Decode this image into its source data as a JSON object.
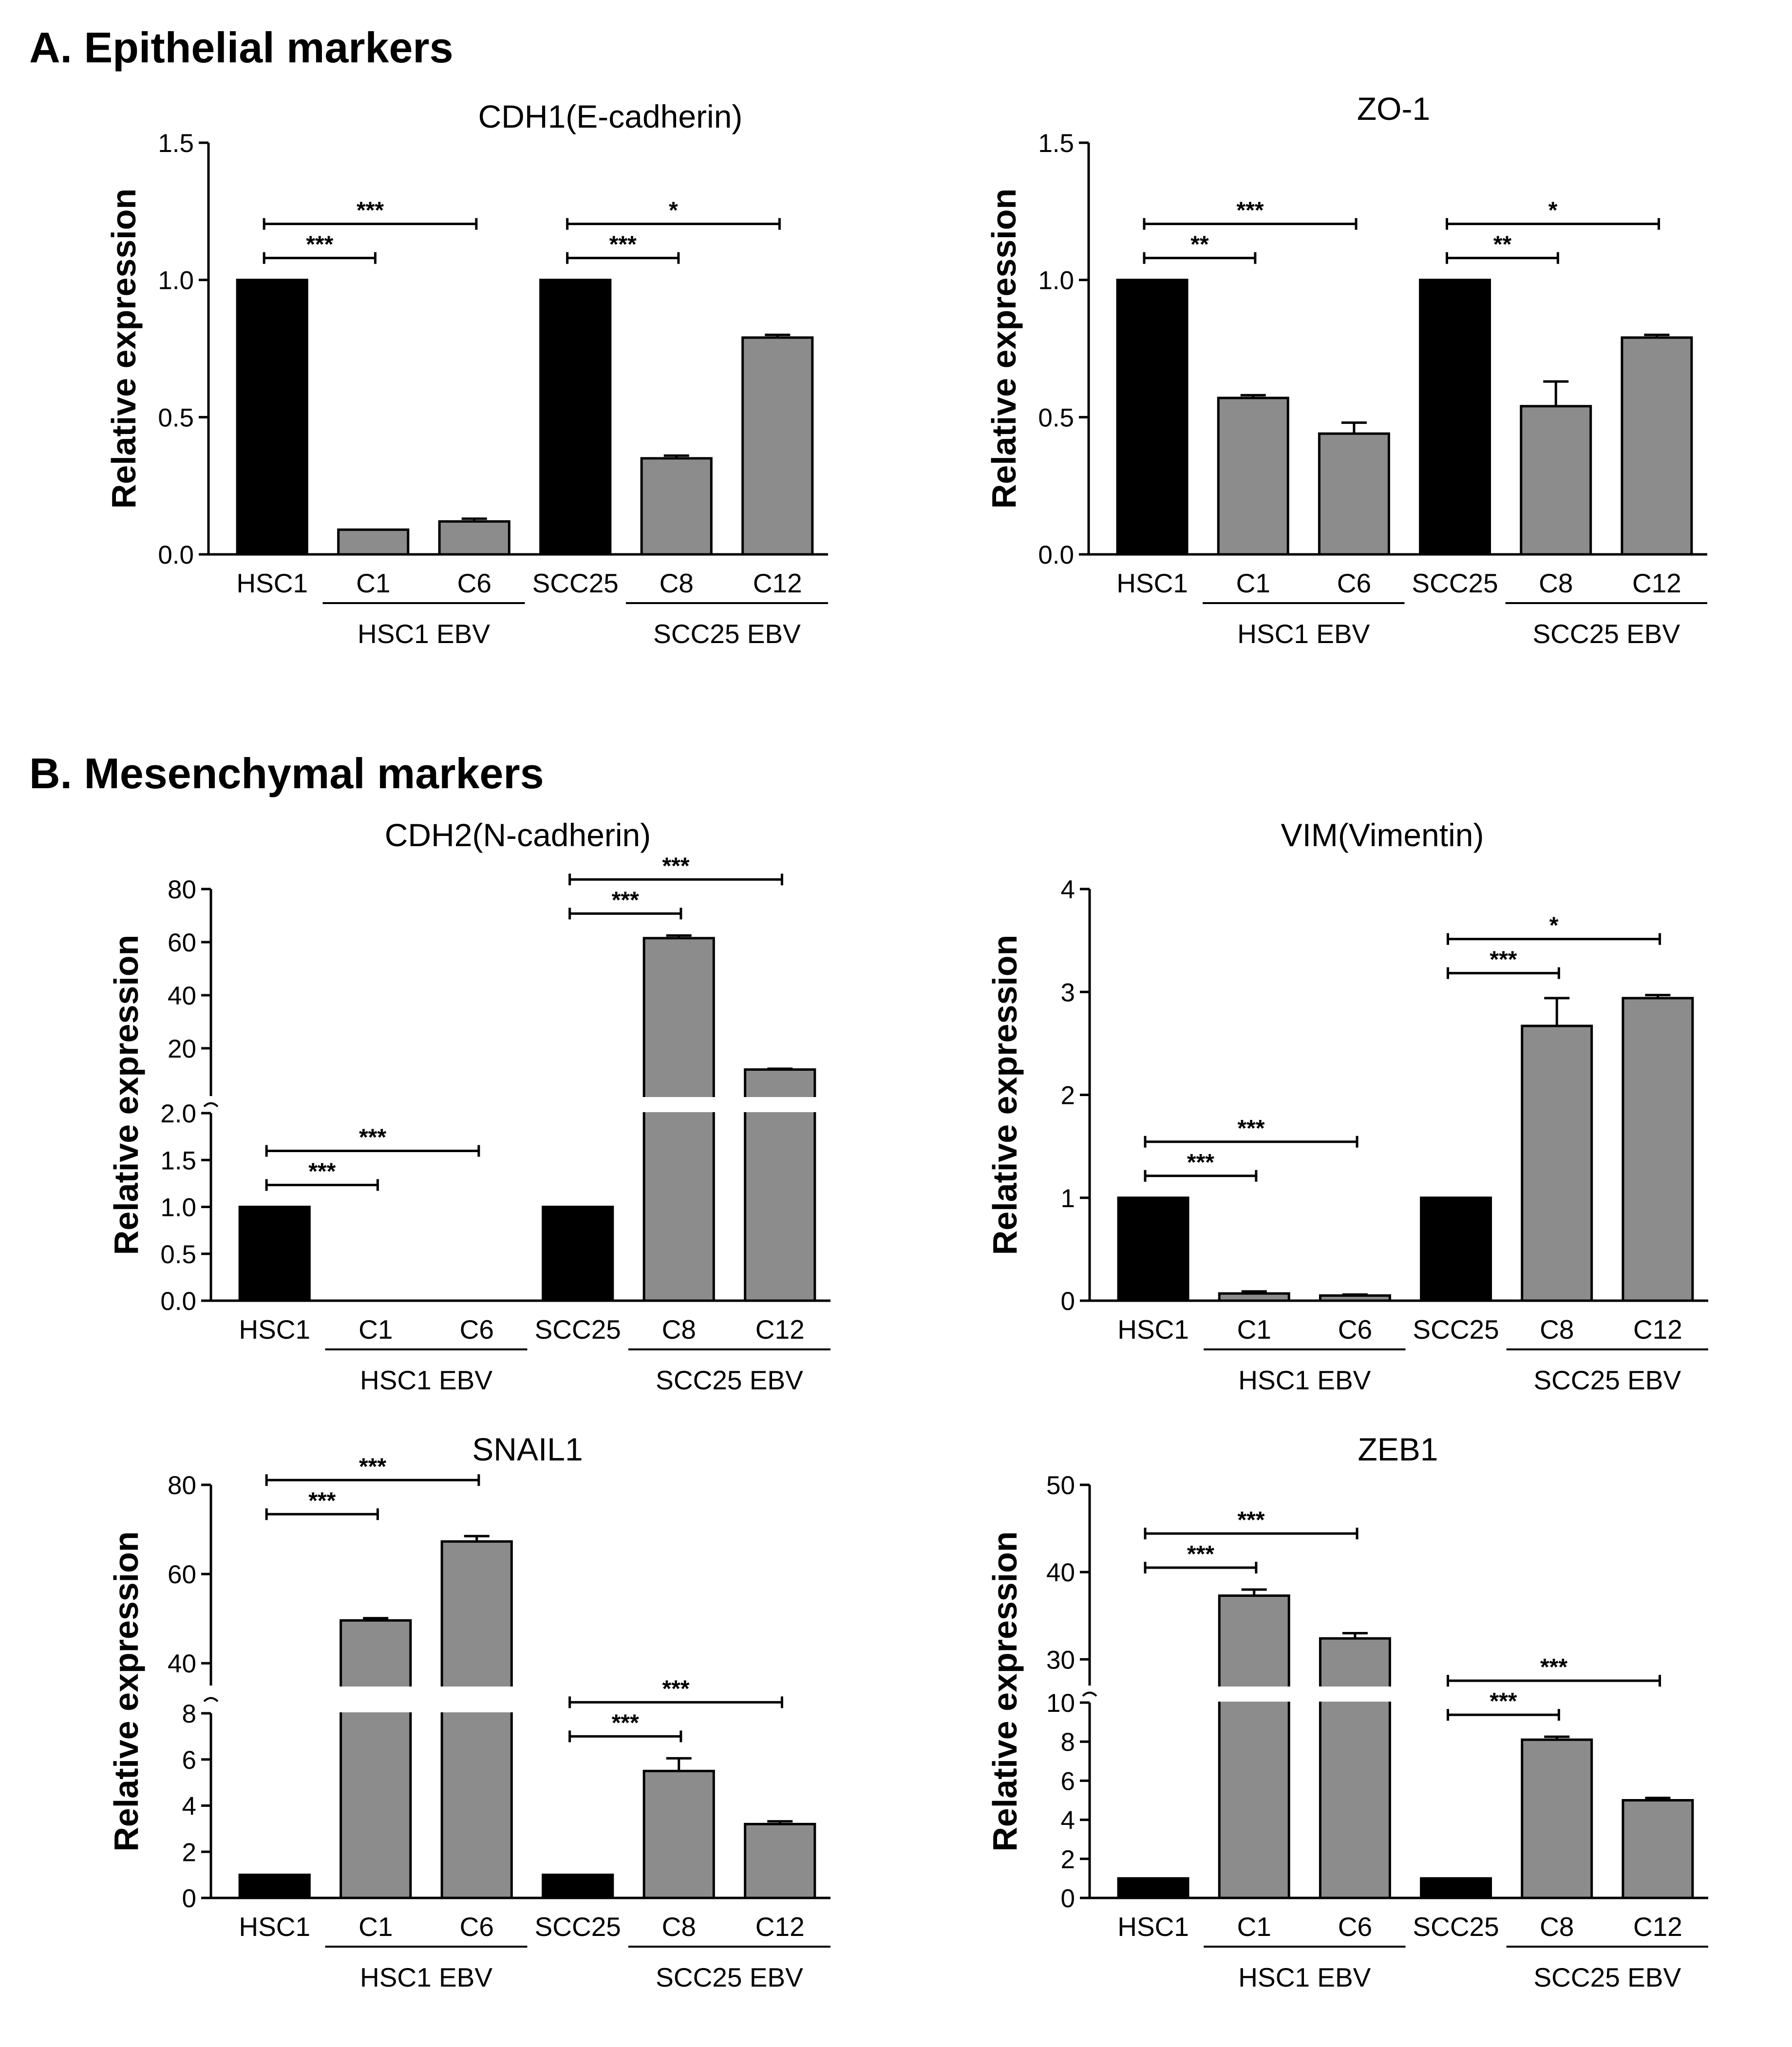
{
  "figure": {
    "section_a_title": "A.  Epithelial markers",
    "section_b_title": "B.  Mesenchymal markers"
  },
  "colors": {
    "control": "#000000",
    "ebv": "#8c8c8c",
    "axis": "#000000"
  },
  "chart_data": [
    {
      "type": "bar",
      "title": "CDH1(E-cadherin)",
      "ylabel": "Relative expression",
      "categories": [
        "HSC1",
        "C1",
        "C6",
        "SCC25",
        "C8",
        "C12"
      ],
      "groups": [
        {
          "label": "HSC1 EBV",
          "categories": [
            "C1",
            "C6"
          ]
        },
        {
          "label": "SCC25 EBV",
          "categories": [
            "C8",
            "C12"
          ]
        }
      ],
      "values": [
        1.0,
        0.09,
        0.12,
        1.0,
        0.35,
        0.79
      ],
      "errors": [
        0,
        0,
        0.01,
        0,
        0.01,
        0.01
      ],
      "ylim": [
        0,
        1.5
      ],
      "yticks": [
        "0.0",
        "0.5",
        "1.0",
        "1.5"
      ],
      "significance": [
        {
          "from": "HSC1",
          "to": "C1",
          "label": "***"
        },
        {
          "from": "HSC1",
          "to": "C6",
          "label": "***"
        },
        {
          "from": "SCC25",
          "to": "C8",
          "label": "***"
        },
        {
          "from": "SCC25",
          "to": "C12",
          "label": "*"
        }
      ]
    },
    {
      "type": "bar",
      "title": "ZO-1",
      "ylabel": "Relative expression",
      "categories": [
        "HSC1",
        "C1",
        "C6",
        "SCC25",
        "C8",
        "C12"
      ],
      "groups": [
        {
          "label": "HSC1 EBV",
          "categories": [
            "C1",
            "C6"
          ]
        },
        {
          "label": "SCC25 EBV",
          "categories": [
            "C8",
            "C12"
          ]
        }
      ],
      "values": [
        1.0,
        0.57,
        0.44,
        1.0,
        0.54,
        0.79
      ],
      "errors": [
        0,
        0.01,
        0.04,
        0,
        0.09,
        0.01
      ],
      "ylim": [
        0,
        1.5
      ],
      "yticks": [
        "0.0",
        "0.5",
        "1.0",
        "1.5"
      ],
      "significance": [
        {
          "from": "HSC1",
          "to": "C1",
          "label": "**"
        },
        {
          "from": "HSC1",
          "to": "C6",
          "label": "***"
        },
        {
          "from": "SCC25",
          "to": "C8",
          "label": "**"
        },
        {
          "from": "SCC25",
          "to": "C12",
          "label": "*"
        }
      ]
    },
    {
      "type": "bar",
      "title": "CDH2(N-cadherin)",
      "ylabel": "Relative expression",
      "categories": [
        "HSC1",
        "C1",
        "C6",
        "SCC25",
        "C8",
        "C12"
      ],
      "groups": [
        {
          "label": "HSC1 EBV",
          "categories": [
            "C1",
            "C6"
          ]
        },
        {
          "label": "SCC25 EBV",
          "categories": [
            "C8",
            "C12"
          ]
        }
      ],
      "values": [
        1.0,
        0.0,
        0.0,
        1.0,
        61.5,
        12.0
      ],
      "errors": [
        0,
        0,
        0,
        0,
        1.0,
        0.3
      ],
      "y_axis_break": {
        "lower": [
          0,
          2
        ],
        "upper": [
          2,
          80
        ]
      },
      "yticks_lower": [
        "0.0",
        "0.5",
        "1.0",
        "1.5",
        "2.0"
      ],
      "yticks_upper": [
        "20",
        "40",
        "60",
        "80"
      ],
      "significance": [
        {
          "from": "HSC1",
          "to": "C1",
          "label": "***"
        },
        {
          "from": "HSC1",
          "to": "C6",
          "label": "***"
        },
        {
          "from": "SCC25",
          "to": "C8",
          "label": "***"
        },
        {
          "from": "SCC25",
          "to": "C12",
          "label": "***"
        }
      ]
    },
    {
      "type": "bar",
      "title": "VIM(Vimentin)",
      "ylabel": "Relative expression",
      "categories": [
        "HSC1",
        "C1",
        "C6",
        "SCC25",
        "C8",
        "C12"
      ],
      "groups": [
        {
          "label": "HSC1 EBV",
          "categories": [
            "C1",
            "C6"
          ]
        },
        {
          "label": "SCC25 EBV",
          "categories": [
            "C8",
            "C12"
          ]
        }
      ],
      "values": [
        1.0,
        0.07,
        0.05,
        1.0,
        2.67,
        2.94
      ],
      "errors": [
        0,
        0.02,
        0.01,
        0,
        0.27,
        0.03
      ],
      "ylim": [
        0,
        4
      ],
      "yticks": [
        "0",
        "1",
        "2",
        "3",
        "4"
      ],
      "significance": [
        {
          "from": "HSC1",
          "to": "C1",
          "label": "***"
        },
        {
          "from": "HSC1",
          "to": "C6",
          "label": "***"
        },
        {
          "from": "SCC25",
          "to": "C8",
          "label": "***"
        },
        {
          "from": "SCC25",
          "to": "C12",
          "label": "*"
        }
      ]
    },
    {
      "type": "bar",
      "title": "SNAIL1",
      "ylabel": "Relative expression",
      "categories": [
        "HSC1",
        "C1",
        "C6",
        "SCC25",
        "C8",
        "C12"
      ],
      "groups": [
        {
          "label": "HSC1 EBV",
          "categories": [
            "C1",
            "C6"
          ]
        },
        {
          "label": "SCC25 EBV",
          "categories": [
            "C8",
            "C12"
          ]
        }
      ],
      "values": [
        1.0,
        49.6,
        67.3,
        1.0,
        5.5,
        3.2
      ],
      "errors": [
        0,
        0.5,
        1.2,
        0,
        0.55,
        0.12
      ],
      "y_axis_break": {
        "lower": [
          0,
          8
        ],
        "upper": [
          35,
          80
        ]
      },
      "yticks_lower": [
        "0",
        "2",
        "4",
        "6",
        "8"
      ],
      "yticks_upper": [
        "40",
        "60",
        "80"
      ],
      "significance": [
        {
          "from": "HSC1",
          "to": "C1",
          "label": "***"
        },
        {
          "from": "HSC1",
          "to": "C6",
          "label": "***"
        },
        {
          "from": "SCC25",
          "to": "C8",
          "label": "***"
        },
        {
          "from": "SCC25",
          "to": "C12",
          "label": "***"
        }
      ]
    },
    {
      "type": "bar",
      "title": "ZEB1",
      "ylabel": "Relative expression",
      "categories": [
        "HSC1",
        "C1",
        "C6",
        "SCC25",
        "C8",
        "C12"
      ],
      "groups": [
        {
          "label": "HSC1 EBV",
          "categories": [
            "C1",
            "C6"
          ]
        },
        {
          "label": "SCC25 EBV",
          "categories": [
            "C8",
            "C12"
          ]
        }
      ],
      "values": [
        1.0,
        37.3,
        32.4,
        1.0,
        8.1,
        5.0
      ],
      "errors": [
        0,
        0.7,
        0.6,
        0,
        0.15,
        0.12
      ],
      "y_axis_break": {
        "lower": [
          0,
          10
        ],
        "upper": [
          27,
          50
        ]
      },
      "yticks_lower": [
        "0",
        "2",
        "4",
        "6",
        "8",
        "10"
      ],
      "yticks_upper": [
        "30",
        "40",
        "50"
      ],
      "significance": [
        {
          "from": "HSC1",
          "to": "C1",
          "label": "***"
        },
        {
          "from": "HSC1",
          "to": "C6",
          "label": "***"
        },
        {
          "from": "SCC25",
          "to": "C8",
          "label": "***"
        },
        {
          "from": "SCC25",
          "to": "C12",
          "label": "***"
        }
      ]
    }
  ]
}
